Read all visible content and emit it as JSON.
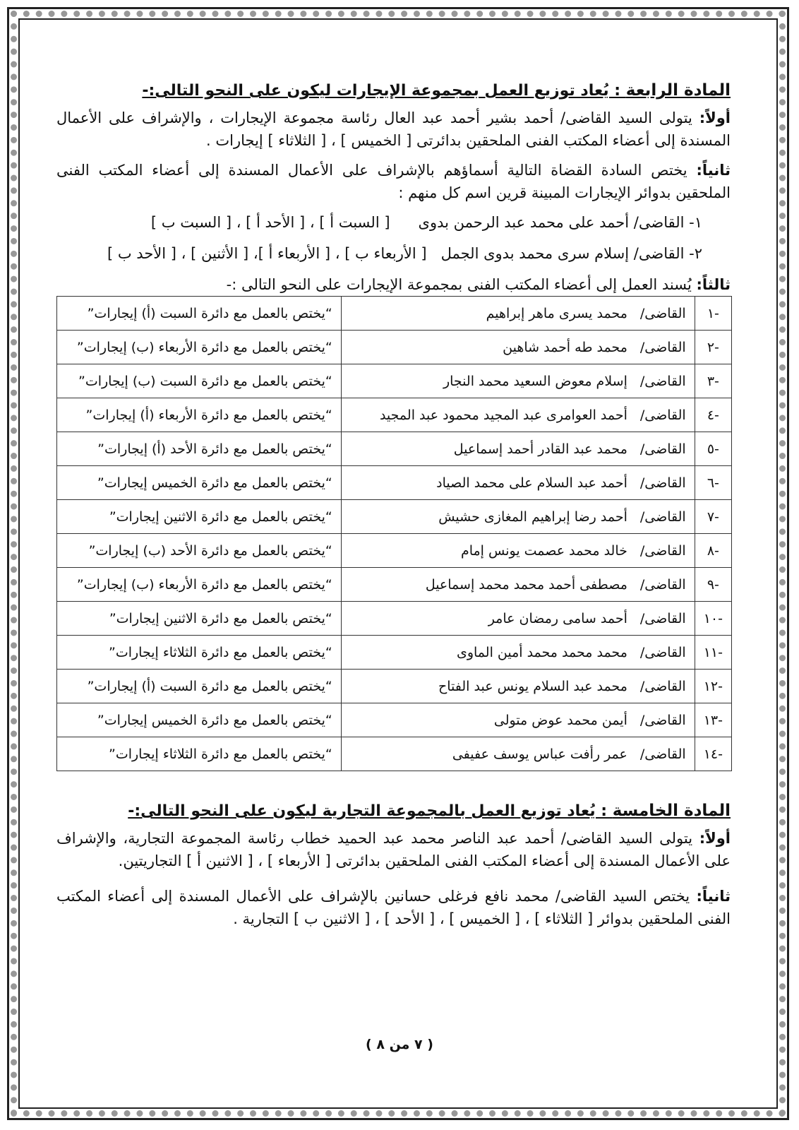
{
  "article4": {
    "heading_label": "المادة الرابعة",
    "heading_text": " : يُعاد توزيع العمل بمجموعة الإيجارات ليكون على النحو التالى:-",
    "first_label": "أولاً:",
    "first_text": " يتولى السيد القاضى/  أحمد بشير أحمد عبد العال رئاسة مجموعة الإيجارات ، والإشراف على الأعمال المسندة إلى أعضاء المكتب الفنى الملحقين بدائرتى [ الخميس ] ، [ الثلاثاء ] إيجارات .",
    "second_label": "ثانياً:",
    "second_text": " يختص السادة القضاة التالية أسماؤهم بالإشراف على الأعمال المسندة إلى أعضاء المكتب الفنى الملحقين بدوائر الإيجارات المبينة قرين اسم كل منهم :",
    "items": [
      {
        "num": "١-",
        "name": "القاضى/ أحمد على محمد عبد الرحمن بدوى",
        "circuits": "[ السبت أ ] ، [ الأحد أ ] ، [ السبت ب ]"
      },
      {
        "num": "٢-",
        "name": "القاضى/ إسلام سرى محمد بدوى الجمل",
        "circuits": "[ الأربعاء ب ] ، [ الأربعاء أ ]، [ الأثنين ] ، [ الأحد ب ]"
      }
    ],
    "third_label": "ثالثاً:",
    "third_text": " يُسند العمل إلى أعضاء المكتب الفنى بمجموعة الإيجارات على النحو التالى :-",
    "table": [
      {
        "num": "-١",
        "title": "القاضى/",
        "name": "محمد يسرى ماهر إبراهيم",
        "assign": "“يختص بالعمل مع دائرة السبت (أ) إيجارات”"
      },
      {
        "num": "-٢",
        "title": "القاضى/",
        "name": "محمد طه أحمد شاهين",
        "assign": "“يختص بالعمل مع دائرة الأربعاء (ب) إيجارات”"
      },
      {
        "num": "-٣",
        "title": "القاضى/",
        "name": "إسلام معوض السعيد محمد النجار",
        "assign": "“يختص بالعمل مع دائرة السبت (ب) إيجارات”"
      },
      {
        "num": "-٤",
        "title": "القاضى/",
        "name": "أحمد العوامرى عبد المجيد محمود عبد المجيد",
        "assign": "“يختص بالعمل مع دائرة الأربعاء (أ) إيجارات”"
      },
      {
        "num": "-٥",
        "title": "القاضى/",
        "name": "محمد عبد القادر أحمد إسماعيل",
        "assign": "“يختص بالعمل مع دائرة الأحد (أ) إيجارات”"
      },
      {
        "num": "-٦",
        "title": "القاضى/",
        "name": "أحمد عبد السلام على محمد الصياد",
        "assign": "“يختص بالعمل مع دائرة الخميس إيجارات”"
      },
      {
        "num": "-٧",
        "title": "القاضى/",
        "name": "أحمد رضا إبراهيم المغازى حشيش",
        "assign": "“يختص بالعمل مع دائرة الاثنين إيجارات”"
      },
      {
        "num": "-٨",
        "title": "القاضى/",
        "name": "خالد محمد عصمت يونس إمام",
        "assign": "“يختص بالعمل مع دائرة الأحد (ب) إيجارات”"
      },
      {
        "num": "-٩",
        "title": "القاضى/",
        "name": "مصطفى أحمد محمد محمد إسماعيل",
        "assign": "“يختص بالعمل مع دائرة الأربعاء (ب) إيجارات”"
      },
      {
        "num": "-١٠",
        "title": "القاضى/",
        "name": "أحمد سامى رمضان عامر",
        "assign": "“يختص بالعمل مع دائرة الاثنين إيجارات”"
      },
      {
        "num": "-١١",
        "title": "القاضى/",
        "name": "محمد محمد محمد أمين الماوى",
        "assign": "“يختص بالعمل مع دائرة الثلاثاء إيجارات”"
      },
      {
        "num": "-١٢",
        "title": "القاضى/",
        "name": "محمد عبد السلام يونس عبد الفتاح",
        "assign": "“يختص بالعمل مع دائرة السبت (أ) إيجارات”"
      },
      {
        "num": "-١٣",
        "title": "القاضى/",
        "name": "أيمن محمد عوض متولى",
        "assign": "“يختص بالعمل مع دائرة الخميس إيجارات”"
      },
      {
        "num": "-١٤",
        "title": "القاضى/",
        "name": "عمر رأفت عباس يوسف عفيفى",
        "assign": "“يختص بالعمل مع دائرة الثلاثاء إيجارات”"
      }
    ]
  },
  "article5": {
    "heading_label": "المادة الخامسة",
    "heading_text": " : يُعاد توزيع العمل بالمجموعة التجارية ليكون على النحو التالى:-",
    "first_label": "أولاً:",
    "first_text": " يتولى السيد القاضى/ أحمد عبد الناصر محمد عبد الحميد خطاب رئاسة المجموعة التجارية، والإشراف على الأعمال المسندة إلى أعضاء المكتب الفنى الملحقين بدائرتى [ الأربعاء ] ، [ الاثنين أ ] التجاريتين.",
    "second_label": "ثانياً:",
    "second_text": " يختص السيد القاضى/ محمد نافع فرغلى حسانين بالإشراف على الأعمال المسندة إلى أعضاء المكتب الفنى الملحقين بدوائر [ الثلاثاء ] ، [ الخميس ] ، [ الأحد ] ، [ الاثنين ب ] التجارية ."
  },
  "footer": {
    "page_label": "( ٧ من ٨ )"
  }
}
